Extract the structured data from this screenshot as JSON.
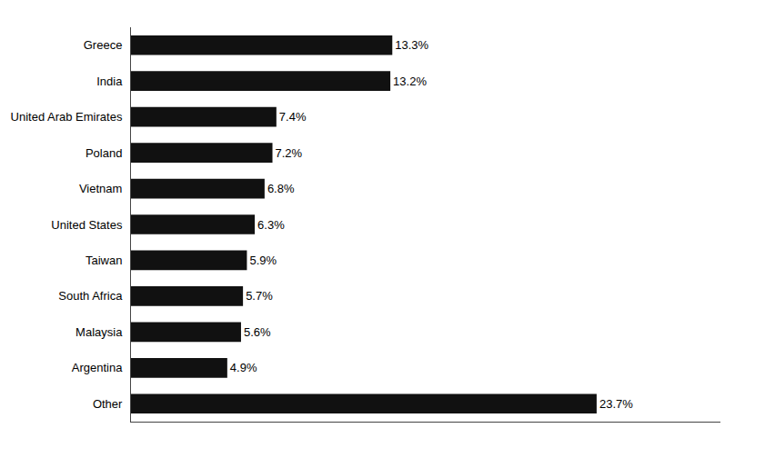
{
  "chart_data": {
    "type": "bar",
    "orientation": "horizontal",
    "categories": [
      "Other",
      "Argentina",
      "Malaysia",
      "South Africa",
      "Taiwan",
      "United States",
      "Vietnam",
      "Poland",
      "United Arab Emirates",
      "India",
      "Greece"
    ],
    "values": [
      23.7,
      4.9,
      5.6,
      5.7,
      5.9,
      6.3,
      6.8,
      7.2,
      7.4,
      13.2,
      13.3
    ],
    "value_labels": [
      "23.7%",
      "4.9%",
      "5.6%",
      "5.7%",
      "5.9%",
      "6.3%",
      "6.8%",
      "7.2%",
      "7.4%",
      "13.2%",
      "13.3%"
    ],
    "data_labels": true,
    "color": "#111111",
    "xlim": [
      0,
      30
    ],
    "grid": false,
    "tick_labels": "y"
  }
}
